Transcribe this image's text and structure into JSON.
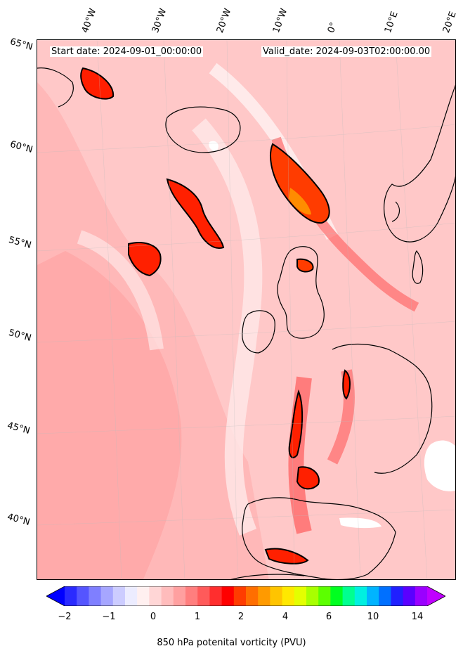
{
  "header": {
    "start_date": "Start date: 2024-09-01_00:00:00",
    "valid_date": "Valid_date: 2024-09-03T02:00:00.00"
  },
  "lat_labels": [
    "65°N",
    "60°N",
    "55°N",
    "50°N",
    "45°N",
    "40°N"
  ],
  "lon_labels": [
    "40°W",
    "30°W",
    "20°W",
    "10°W",
    "0°",
    "10°E",
    "20°E"
  ],
  "colorbar": {
    "label": "850 hPa potenital vorticity (PVU)",
    "ticks": [
      "−2",
      "−1",
      "0",
      "1",
      "2",
      "4",
      "6",
      "10",
      "14"
    ],
    "colors": [
      "#0000ff",
      "#2a2aff",
      "#5555ff",
      "#7f7fff",
      "#a6a6ff",
      "#ccccff",
      "#ececff",
      "#fff0f0",
      "#ffd6d6",
      "#ffbcbc",
      "#ffa0a0",
      "#ff7e7e",
      "#ff5a5a",
      "#ff2e2e",
      "#ff0000",
      "#ff3c00",
      "#ff6e00",
      "#ff9a00",
      "#ffc400",
      "#ffe800",
      "#e4ff00",
      "#a8ff00",
      "#5cff00",
      "#00ff20",
      "#00ff90",
      "#00f0e0",
      "#00b4ff",
      "#0070ff",
      "#2020ff",
      "#5a00ff",
      "#9a00ff",
      "#c000ff"
    ]
  },
  "map": {
    "background_color": "#ffd6d6",
    "coastline_color": "#000000",
    "contour_level_pvu": 2
  }
}
